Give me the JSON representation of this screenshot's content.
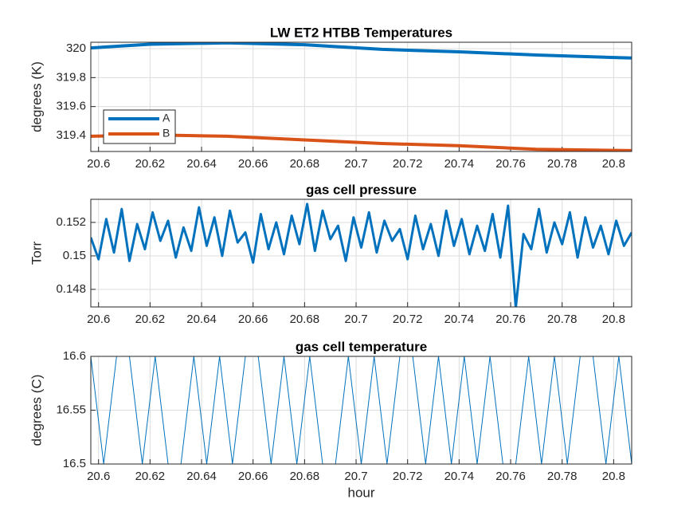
{
  "chart_data": [
    {
      "type": "line",
      "title": "LW ET2 HTBB Temperatures",
      "ylabel": "degrees (K)",
      "x": [
        20.597,
        20.62,
        20.65,
        20.68,
        20.71,
        20.74,
        20.77,
        20.807
      ],
      "series": [
        {
          "name": "A",
          "color": "#0072BD",
          "values": [
            320.005,
            320.03,
            320.04,
            320.027,
            319.995,
            319.978,
            319.956,
            319.935
          ]
        },
        {
          "name": "B",
          "color": "#D95319",
          "values": [
            319.395,
            319.405,
            319.395,
            319.37,
            319.345,
            319.33,
            319.305,
            319.296
          ]
        }
      ],
      "xlim": [
        20.597,
        20.807
      ],
      "xticks": [
        20.6,
        20.62,
        20.64,
        20.66,
        20.68,
        20.7,
        20.72,
        20.74,
        20.76,
        20.78,
        20.8
      ],
      "ylim": [
        319.29,
        320.044
      ],
      "yticks": [
        319.4,
        319.6,
        319.8,
        320
      ],
      "grid": true,
      "legend": "lower left"
    },
    {
      "type": "line",
      "title": "gas cell pressure",
      "ylabel": "Torr",
      "x": [
        20.597,
        20.6,
        20.603,
        20.606,
        20.609,
        20.612,
        20.615,
        20.618,
        20.621,
        20.624,
        20.627,
        20.63,
        20.633,
        20.636,
        20.639,
        20.642,
        20.645,
        20.648,
        20.651,
        20.654,
        20.657,
        20.66,
        20.663,
        20.666,
        20.669,
        20.672,
        20.675,
        20.678,
        20.681,
        20.684,
        20.687,
        20.69,
        20.693,
        20.696,
        20.699,
        20.702,
        20.705,
        20.708,
        20.711,
        20.714,
        20.717,
        20.72,
        20.723,
        20.726,
        20.729,
        20.732,
        20.735,
        20.738,
        20.741,
        20.744,
        20.747,
        20.75,
        20.753,
        20.756,
        20.759,
        20.762,
        20.765,
        20.768,
        20.771,
        20.774,
        20.777,
        20.78,
        20.783,
        20.786,
        20.789,
        20.792,
        20.795,
        20.798,
        20.801,
        20.804,
        20.807
      ],
      "series": [
        {
          "color": "#0072BD",
          "values": [
            0.1511,
            0.1498,
            0.1522,
            0.1502,
            0.1528,
            0.1497,
            0.1519,
            0.1504,
            0.1526,
            0.1509,
            0.1521,
            0.1499,
            0.1517,
            0.1503,
            0.1529,
            0.1506,
            0.1523,
            0.15,
            0.1527,
            0.1508,
            0.1514,
            0.1496,
            0.1525,
            0.1504,
            0.152,
            0.1501,
            0.1524,
            0.1507,
            0.1531,
            0.1503,
            0.1527,
            0.151,
            0.1518,
            0.1497,
            0.1523,
            0.1505,
            0.1526,
            0.1502,
            0.1521,
            0.1509,
            0.1516,
            0.1498,
            0.1524,
            0.1504,
            0.1519,
            0.15,
            0.1527,
            0.1506,
            0.1522,
            0.1501,
            0.1518,
            0.1503,
            0.1525,
            0.1499,
            0.153,
            0.1469,
            0.1513,
            0.1504,
            0.1528,
            0.1502,
            0.152,
            0.1507,
            0.1526,
            0.1499,
            0.1523,
            0.1505,
            0.1518,
            0.1501,
            0.1521,
            0.1506,
            0.1514
          ]
        }
      ],
      "xlim": [
        20.597,
        20.807
      ],
      "xticks": [
        20.6,
        20.62,
        20.64,
        20.66,
        20.68,
        20.7,
        20.72,
        20.74,
        20.76,
        20.78,
        20.8
      ],
      "ylim": [
        0.14695,
        0.15338
      ],
      "yticks": [
        0.148,
        0.15,
        0.152
      ],
      "grid": true
    },
    {
      "type": "line",
      "title": "gas cell temperature",
      "ylabel": "degrees (C)",
      "xlabel": "hour",
      "x": [
        20.597,
        20.602,
        20.607,
        20.612,
        20.617,
        20.622,
        20.627,
        20.632,
        20.637,
        20.642,
        20.647,
        20.652,
        20.657,
        20.662,
        20.667,
        20.672,
        20.677,
        20.682,
        20.687,
        20.692,
        20.697,
        20.702,
        20.707,
        20.712,
        20.717,
        20.722,
        20.727,
        20.732,
        20.737,
        20.742,
        20.747,
        20.752,
        20.757,
        20.762,
        20.767,
        20.772,
        20.777,
        20.782,
        20.787,
        20.792,
        20.797,
        20.802,
        20.807
      ],
      "series": [
        {
          "color": "#0072BD",
          "values": [
            16.6,
            16.5,
            16.6,
            16.6,
            16.5,
            16.6,
            16.5,
            16.5,
            16.6,
            16.5,
            16.6,
            16.5,
            16.6,
            16.6,
            16.5,
            16.6,
            16.5,
            16.6,
            16.5,
            16.5,
            16.6,
            16.5,
            16.6,
            16.5,
            16.6,
            16.6,
            16.5,
            16.6,
            16.5,
            16.6,
            16.5,
            16.6,
            16.5,
            16.5,
            16.6,
            16.5,
            16.6,
            16.5,
            16.6,
            16.6,
            16.5,
            16.6,
            16.5
          ]
        }
      ],
      "xlim": [
        20.597,
        20.807
      ],
      "xticks": [
        20.6,
        20.62,
        20.64,
        20.66,
        20.68,
        20.7,
        20.72,
        20.74,
        20.76,
        20.78,
        20.8
      ],
      "ylim": [
        16.5,
        16.6
      ],
      "yticks": [
        16.5,
        16.55,
        16.6
      ],
      "grid": true
    }
  ]
}
